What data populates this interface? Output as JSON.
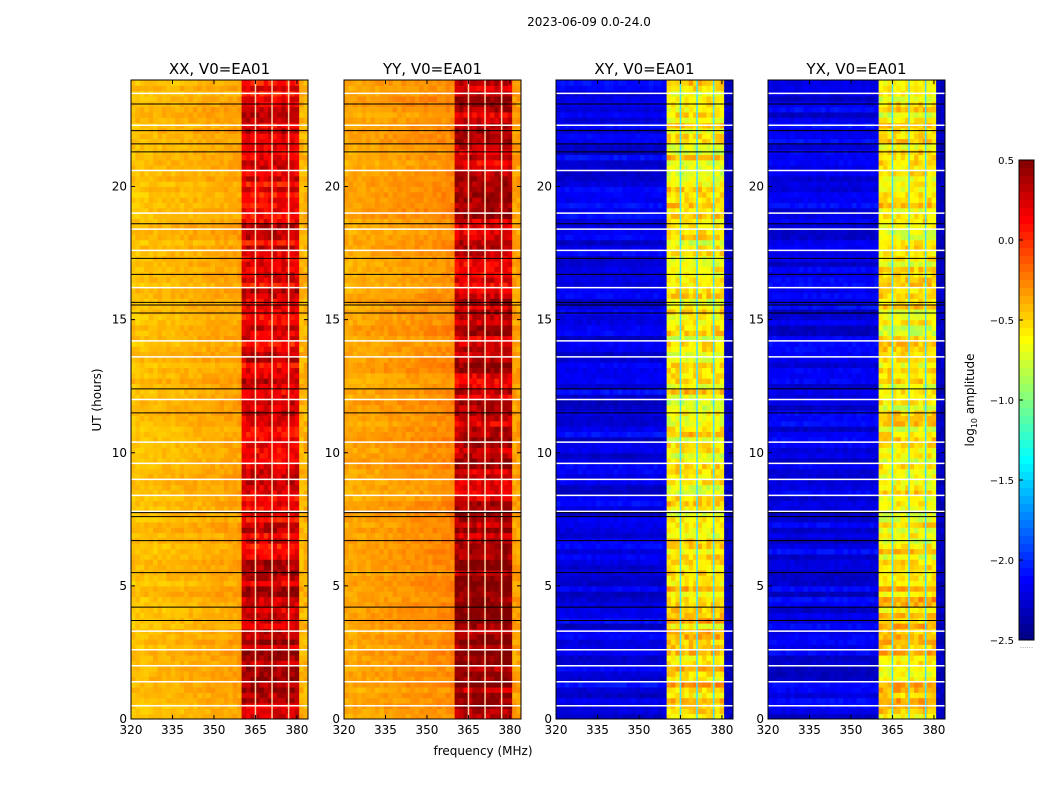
{
  "chart_data": {
    "type": "heatmap",
    "title": "2023-06-09 0.0-24.0",
    "xlabel": "frequency (MHz)",
    "ylabel": "UT (hours)",
    "xlim": [
      320,
      384
    ],
    "ylim": [
      0,
      24
    ],
    "xticks": [
      "320",
      "335",
      "350",
      "365",
      "380"
    ],
    "xtick_values": [
      320,
      335,
      350,
      365,
      380
    ],
    "yticks": [
      "0",
      "5",
      "10",
      "15",
      "20"
    ],
    "ytick_values": [
      0,
      5,
      10,
      15,
      20
    ],
    "colormap": "jet",
    "colorbar": {
      "label_main": "log",
      "label_sub": "10",
      "label_rest": " amplitude",
      "range": [
        -2.5,
        0.5
      ],
      "ticks": [
        "0.5",
        "0.0",
        "−0.5",
        "−1.0",
        "−1.5",
        "−2.0",
        "−2.5"
      ],
      "tick_values": [
        0.5,
        0.0,
        -0.5,
        -1.0,
        -1.5,
        -2.0,
        -2.5
      ],
      "footer": "......"
    },
    "panels": [
      {
        "title": "XX, V0=EA01",
        "base": -0.45,
        "band": 0.2,
        "high": -0.4,
        "gradient": 0.1
      },
      {
        "title": "YY, V0=EA01",
        "base": -0.38,
        "band": 0.3,
        "high": -0.35,
        "gradient": 0.1
      },
      {
        "title": "XY, V0=EA01",
        "base": -2.2,
        "band": -0.6,
        "high": -2.3,
        "gradient": 0.0
      },
      {
        "title": "YX, V0=EA01",
        "base": -2.2,
        "band": -0.6,
        "high": -2.3,
        "gradient": 0.0
      }
    ],
    "band_mhz": [
      360.5,
      380.5
    ],
    "band_gap_lines_mhz": [
      365,
      371,
      377
    ],
    "flagged_hours_white": [
      0.5,
      1.4,
      2.0,
      2.6,
      3.3,
      7.8,
      8.4,
      9.0,
      9.6,
      10.4,
      12.0,
      13.6,
      14.2,
      16.2,
      17.6,
      18.4,
      19.0,
      20.6,
      22.3,
      23.5
    ],
    "boundary_hours_black": [
      3.7,
      4.2,
      5.5,
      6.7,
      7.6,
      7.75,
      11.5,
      12.4,
      15.25,
      15.55,
      15.65,
      16.7,
      17.3,
      18.6,
      21.3,
      21.6,
      22.1,
      23.1
    ]
  }
}
